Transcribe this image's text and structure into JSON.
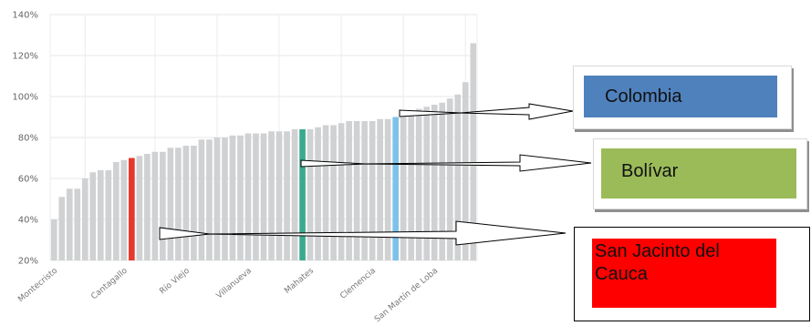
{
  "chart_data": {
    "type": "bar",
    "ylim": [
      20,
      140
    ],
    "yticks": [
      "20%",
      "40%",
      "60%",
      "80%",
      "100%",
      "120%",
      "140%"
    ],
    "xlabels": [
      {
        "text": "Montecristo",
        "index": 0
      },
      {
        "text": "Cantagallo",
        "index": 9
      },
      {
        "text": "Río Viejo",
        "index": 17
      },
      {
        "text": "Villanueva",
        "index": 25
      },
      {
        "text": "Mahates",
        "index": 33
      },
      {
        "text": "Clemencia",
        "index": 41
      },
      {
        "text": "San Martín de Loba",
        "index": 49
      }
    ],
    "values": [
      40,
      51,
      55,
      55,
      60,
      63,
      64,
      64,
      68,
      69,
      70,
      71,
      72,
      73,
      73,
      75,
      75,
      76,
      76,
      79,
      79,
      80,
      80,
      81,
      81,
      82,
      82,
      82,
      83,
      83,
      83,
      84,
      84,
      84,
      85,
      86,
      86,
      87,
      88,
      88,
      88,
      88,
      89,
      89,
      90,
      91,
      92,
      94,
      95,
      96,
      97,
      99,
      101,
      107,
      126
    ],
    "highlights": [
      {
        "index": 10,
        "color": "#e8372b"
      },
      {
        "index": 32,
        "color": "#3aaa8e"
      },
      {
        "index": 44,
        "color": "#7ec2ea"
      }
    ],
    "bar_color": "#cfd1d3",
    "grid": true
  },
  "callouts": {
    "colombia": {
      "label": "Colombia",
      "color": "#4f81bd"
    },
    "bolivar": {
      "label": "Bolívar",
      "color": "#9bbb59"
    },
    "san_jacinto": {
      "label": "San Jacinto del Cauca",
      "color": "#ff0000"
    }
  }
}
